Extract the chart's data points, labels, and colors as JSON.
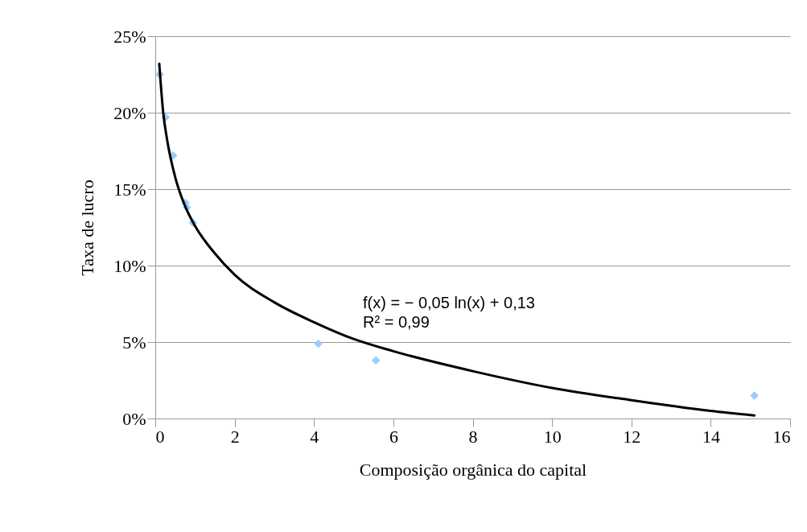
{
  "chart_data": {
    "type": "scatter",
    "xlabel": "Composição orgânica do capital",
    "ylabel": "Taxa de lucro",
    "xlim": [
      0,
      16
    ],
    "xticks": [
      0,
      2,
      4,
      6,
      8,
      10,
      12,
      14,
      16
    ],
    "ylim": [
      0,
      25
    ],
    "yticks": [
      {
        "value": 0,
        "label": "0%"
      },
      {
        "value": 5,
        "label": "5%"
      },
      {
        "value": 10,
        "label": "10%"
      },
      {
        "value": 15,
        "label": "15%"
      },
      {
        "value": 20,
        "label": "20%"
      },
      {
        "value": 25,
        "label": "25%"
      }
    ],
    "grid": "y",
    "series": [
      {
        "color": "#99ccff",
        "marker": "diamond",
        "x": [
          0.11,
          0.26,
          0.45,
          0.76,
          0.8,
          0.95,
          4.11,
          5.56,
          15.1
        ],
        "values": [
          22.5,
          19.7,
          17.2,
          14.1,
          13.8,
          12.8,
          4.9,
          3.8,
          1.5
        ]
      },
      {
        "type": "line",
        "color": "#000000",
        "marker": "none",
        "x": [
          0.1,
          0.2,
          0.3,
          0.5,
          0.75,
          1,
          1.5,
          2,
          3,
          4,
          5,
          6,
          8,
          10,
          12,
          14,
          15.1
        ],
        "values": [
          23.2,
          20.0,
          18.2,
          15.8,
          13.9,
          12.6,
          10.8,
          9.4,
          7.6,
          6.3,
          5.2,
          4.4,
          3.1,
          2.0,
          1.2,
          0.5,
          0.2
        ]
      }
    ],
    "annotations": [
      "f(x) = − 0,05 ln(x) + 0,13",
      "R² = 0,99"
    ]
  }
}
